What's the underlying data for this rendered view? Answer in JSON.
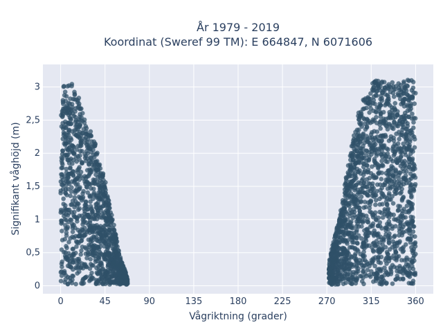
{
  "chart_data": {
    "type": "scatter",
    "title_line1": "År 1979 - 2019",
    "title_line2": "Koordinat (Sweref 99 TM): E 664847, N 6071606",
    "xlabel": "Vågriktning (grader)",
    "ylabel": "Signifikant våghöjd (m)",
    "xlim": [
      -18,
      378
    ],
    "ylim": [
      -0.12,
      3.34
    ],
    "x_ticks": [
      0,
      45,
      90,
      135,
      180,
      225,
      270,
      315,
      360
    ],
    "x_tick_labels": [
      "0",
      "45",
      "90",
      "135",
      "180",
      "225",
      "270",
      "315",
      "360"
    ],
    "y_ticks": [
      0,
      0.5,
      1,
      1.5,
      2,
      2.5,
      3
    ],
    "y_tick_labels": [
      "0",
      "0,5",
      "1",
      "1,5",
      "2",
      "2,5",
      "3"
    ],
    "grid": true,
    "marker_color": "#2f5168",
    "plot_background": "#e5e8f2",
    "grid_color": "#ffffff",
    "clusters": [
      {
        "name": "",
        "x_range": [
          0,
          68
        ],
        "envelope_x": [
          0,
          5,
          10,
          15,
          20,
          25,
          30,
          35,
          40,
          45,
          50,
          55,
          60,
          65,
          68
        ],
        "envelope_y_max": [
          3.0,
          3.05,
          3.1,
          2.95,
          2.8,
          2.5,
          2.35,
          2.15,
          1.85,
          1.6,
          1.2,
          0.85,
          0.45,
          0.25,
          0.1
        ],
        "y_min": 0.02,
        "n": 1300
      },
      {
        "name": "",
        "x_range": [
          272,
          360
        ],
        "envelope_x": [
          272,
          278,
          285,
          290,
          295,
          300,
          305,
          310,
          315,
          320,
          330,
          340,
          350,
          355,
          360
        ],
        "envelope_y_max": [
          0.35,
          0.75,
          1.2,
          1.7,
          2.1,
          2.5,
          2.75,
          2.9,
          3.05,
          3.1,
          3.1,
          3.05,
          3.1,
          3.15,
          3.1
        ],
        "y_min": 0.02,
        "n": 1700
      }
    ]
  }
}
